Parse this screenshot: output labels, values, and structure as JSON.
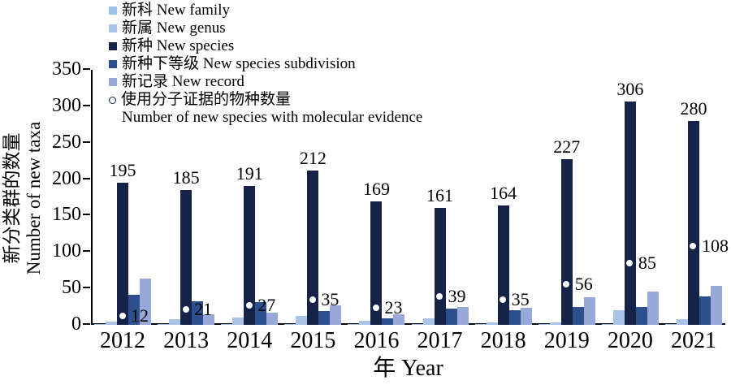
{
  "figure": {
    "x_axis_title": "年 Year",
    "y_axis_title_zh": "新分类群的数量",
    "y_axis_title_en": "Number of new taxa"
  },
  "colors": {
    "axis": "#000000",
    "background": "#ffffff",
    "marker_ring": "#14224a",
    "marker_fill": "#ffffff"
  },
  "chart_data": {
    "type": "bar",
    "title": "",
    "xlabel": "年 Year",
    "ylabel": "新分类群的数量 Number of new taxa",
    "ylim": [
      0,
      350
    ],
    "ytick_step": 50,
    "grid": false,
    "legend_position": "top-left",
    "categories": [
      "2012",
      "2013",
      "2014",
      "2015",
      "2016",
      "2017",
      "2018",
      "2019",
      "2020",
      "2021"
    ],
    "series": [
      {
        "key": "new-family",
        "label": "新科 New family",
        "color": "#9cc2e5",
        "values": [
          1,
          1,
          1,
          1,
          1,
          1,
          1,
          1,
          1,
          1
        ]
      },
      {
        "key": "new-genus",
        "label": "新属 New genus",
        "color": "#a9c4e6",
        "values": [
          4,
          8,
          10,
          12,
          6,
          9,
          3,
          3,
          20,
          8
        ]
      },
      {
        "key": "new-species",
        "label": "新种 New species",
        "color": "#152349",
        "values": [
          195,
          185,
          191,
          212,
          169,
          161,
          164,
          227,
          306,
          280
        ],
        "data_labels": true
      },
      {
        "key": "new-species-subdivision",
        "label": "新种下等级 New species subdivision",
        "color": "#2e4f8e",
        "values": [
          41,
          32,
          31,
          19,
          9,
          22,
          20,
          24,
          25,
          39
        ]
      },
      {
        "key": "new-record",
        "label": "新记录 New record",
        "color": "#98a8d8",
        "values": [
          64,
          15,
          17,
          27,
          14,
          24,
          23,
          38,
          46,
          53
        ]
      }
    ],
    "point_series": {
      "key": "molecular-evidence",
      "label_zh": "使用分子证据的物种数量",
      "label_en": "Number of new species with molecular evidence",
      "marker": "open-circle",
      "values": [
        12,
        21,
        27,
        35,
        23,
        39,
        35,
        56,
        85,
        108
      ]
    }
  }
}
